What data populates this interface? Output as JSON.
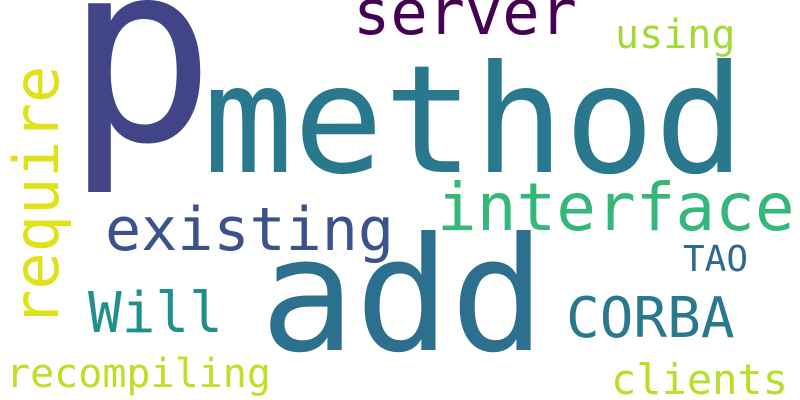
{
  "words": [
    {
      "id": "p",
      "text": "p",
      "color": "#414487"
    },
    {
      "id": "method",
      "text": "method",
      "color": "#2a788e"
    },
    {
      "id": "add",
      "text": "add",
      "color": "#2d6f8e"
    },
    {
      "id": "interface",
      "text": "interface",
      "color": "#35b779"
    },
    {
      "id": "existing",
      "text": "existing",
      "color": "#3b528b"
    },
    {
      "id": "server",
      "text": "server",
      "color": "#440154"
    },
    {
      "id": "require",
      "text": "require",
      "color": "#dde318"
    },
    {
      "id": "corba",
      "text": "CORBA",
      "color": "#2a788e"
    },
    {
      "id": "will",
      "text": "Will",
      "color": "#21908d"
    },
    {
      "id": "tao",
      "text": "TAO",
      "color": "#31688e"
    },
    {
      "id": "using",
      "text": "using",
      "color": "#a2da37"
    },
    {
      "id": "recompiling",
      "text": "recompiling",
      "color": "#bddf26"
    },
    {
      "id": "clients",
      "text": "clients",
      "color": "#b8de29"
    }
  ]
}
